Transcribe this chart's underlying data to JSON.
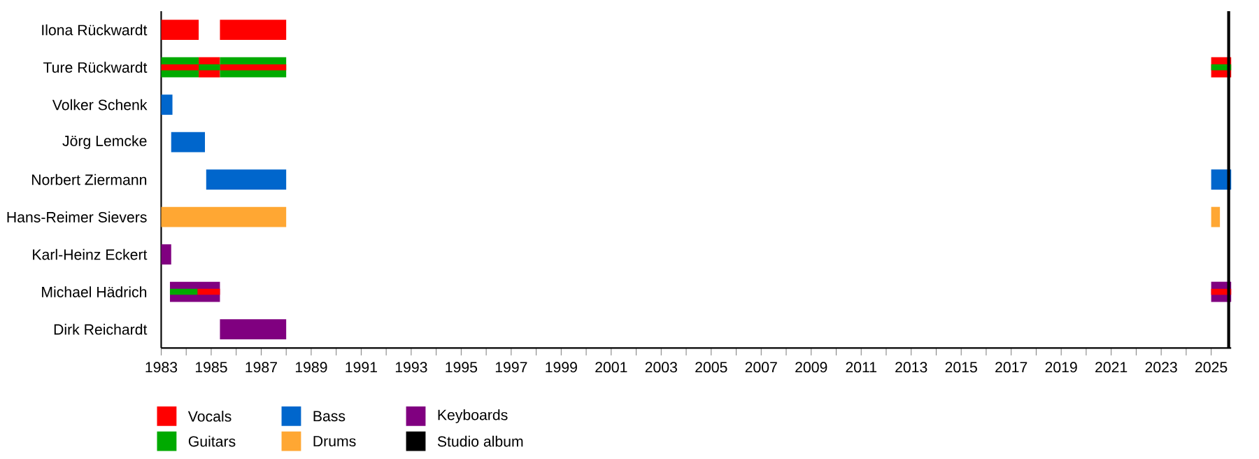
{
  "chart_data": {
    "type": "bar",
    "orientation": "horizontal",
    "categories": [
      "Ilona Rückwardt",
      "Ture Rückwardt",
      "Volker Schenk",
      "Jörg Lemcke",
      "Norbert Ziermann",
      "Hans-Reimer Sievers",
      "Karl-Heinz Eckert",
      "Michael Hädrich",
      "Dirk Reichardt"
    ],
    "series": [
      {
        "name": "Vocals",
        "color": "#ff0000",
        "base": [
          1983,
          1984.5,
          null,
          null,
          null,
          null,
          null,
          null,
          null
        ],
        "values": [
          1.5,
          0.85,
          null,
          null,
          null,
          null,
          null,
          null,
          null
        ]
      },
      {
        "color": "#ff0000",
        "base": [
          1985.35,
          2025,
          null,
          null,
          null,
          null,
          null,
          null,
          null
        ],
        "values": [
          2.65,
          0.8,
          null,
          null,
          null,
          null,
          null,
          null,
          null
        ]
      },
      {
        "name": "Guitars",
        "color": "#00aa00",
        "base": [
          null,
          1983,
          null,
          null,
          null,
          null,
          null,
          null,
          null
        ],
        "values": [
          null,
          1.5,
          null,
          null,
          null,
          null,
          null,
          null,
          null
        ]
      },
      {
        "color": "#00aa00",
        "base": [
          null,
          1985.35,
          null,
          null,
          null,
          null,
          null,
          null,
          null
        ],
        "values": [
          null,
          2.65,
          null,
          null,
          null,
          null,
          null,
          null,
          null
        ]
      },
      {
        "name": "Bass",
        "color": "#0066cc",
        "base": [
          null,
          null,
          1983,
          1983.4,
          1984.8,
          null,
          null,
          null,
          null
        ],
        "values": [
          null,
          null,
          0.45,
          1.35,
          3.2,
          null,
          null,
          null,
          null
        ]
      },
      {
        "color": "#0066cc",
        "base": [
          null,
          null,
          null,
          null,
          2025,
          null,
          null,
          null,
          null
        ],
        "values": [
          null,
          null,
          null,
          null,
          0.8,
          null,
          null,
          null,
          null
        ]
      },
      {
        "name": "Drums",
        "color": "#ffa733",
        "base": [
          null,
          null,
          null,
          null,
          null,
          1983,
          null,
          null,
          null
        ],
        "values": [
          null,
          null,
          null,
          null,
          null,
          5,
          null,
          null,
          null
        ]
      },
      {
        "color": "#ffa733",
        "base": [
          null,
          null,
          null,
          null,
          null,
          2025,
          null,
          null,
          null
        ],
        "values": [
          null,
          null,
          null,
          null,
          null,
          0.35,
          null,
          null,
          null
        ]
      },
      {
        "name": "Keyboards",
        "color": "#800080",
        "base": [
          null,
          null,
          null,
          null,
          null,
          null,
          1983,
          1983.35,
          1985.35
        ],
        "values": [
          null,
          null,
          null,
          null,
          null,
          null,
          0.4,
          2,
          2.65
        ]
      },
      {
        "color": "#800080",
        "base": [
          null,
          null,
          null,
          null,
          null,
          null,
          null,
          2025,
          null
        ],
        "values": [
          null,
          null,
          null,
          null,
          null,
          null,
          null,
          0.8,
          null
        ]
      },
      {
        "color": "#ff0000",
        "base": [
          null,
          1983,
          null,
          null,
          null,
          null,
          null,
          1984.45,
          null
        ],
        "values": [
          null,
          1.5,
          null,
          null,
          null,
          null,
          null,
          0.9,
          null
        ]
      },
      {
        "color": "#ff0000",
        "base": [
          null,
          1985.35,
          null,
          null,
          null,
          null,
          null,
          2025,
          null
        ],
        "values": [
          null,
          2.65,
          null,
          null,
          null,
          null,
          null,
          0.8,
          null
        ]
      },
      {
        "color": "#00aa00",
        "base": [
          null,
          1984.5,
          null,
          null,
          null,
          null,
          null,
          1983.35,
          null
        ],
        "values": [
          null,
          0.85,
          null,
          null,
          null,
          null,
          null,
          1.1,
          null
        ]
      },
      {
        "color": "#00aa00",
        "base": [
          null,
          2025,
          null,
          null,
          null,
          null,
          null,
          null,
          null
        ],
        "values": [
          null,
          0.8,
          null,
          null,
          null,
          null,
          null,
          null,
          null
        ]
      }
    ],
    "xlim": [
      1983,
      2025.8
    ],
    "xticks": [
      1983,
      {
        "value": 1984,
        "label": null
      },
      1985,
      {
        "value": 1986,
        "label": null
      },
      1987,
      {
        "value": 1988,
        "label": null
      },
      1989,
      {
        "value": 1990,
        "label": null
      },
      1991,
      {
        "value": 1992,
        "label": null
      },
      1993,
      {
        "value": 1994,
        "label": null
      },
      1995,
      {
        "value": 1996,
        "label": null
      },
      1997,
      {
        "value": 1998,
        "label": null
      },
      1999,
      {
        "value": 2000,
        "label": null
      },
      2001,
      {
        "value": 2002,
        "label": null
      },
      2003,
      {
        "value": 2004,
        "label": null
      },
      2005,
      {
        "value": 2006,
        "label": null
      },
      2007,
      {
        "value": 2008,
        "label": null
      },
      2009,
      {
        "value": 2010,
        "label": null
      },
      2011,
      {
        "value": 2012,
        "label": null
      },
      2013,
      {
        "value": 2014,
        "label": null
      },
      2015,
      {
        "value": 2016,
        "label": null
      },
      2017,
      {
        "value": 2018,
        "label": null
      },
      2019,
      {
        "value": 2020,
        "label": null
      },
      2021,
      {
        "value": 2022,
        "label": null
      },
      2023,
      {
        "value": 2024,
        "label": null
      },
      2025
    ],
    "ref_lines": [
      {
        "axis": "x",
        "value": 2025.7,
        "label": "Studio album",
        "color": "#000000"
      }
    ],
    "legend": "bottom"
  }
}
